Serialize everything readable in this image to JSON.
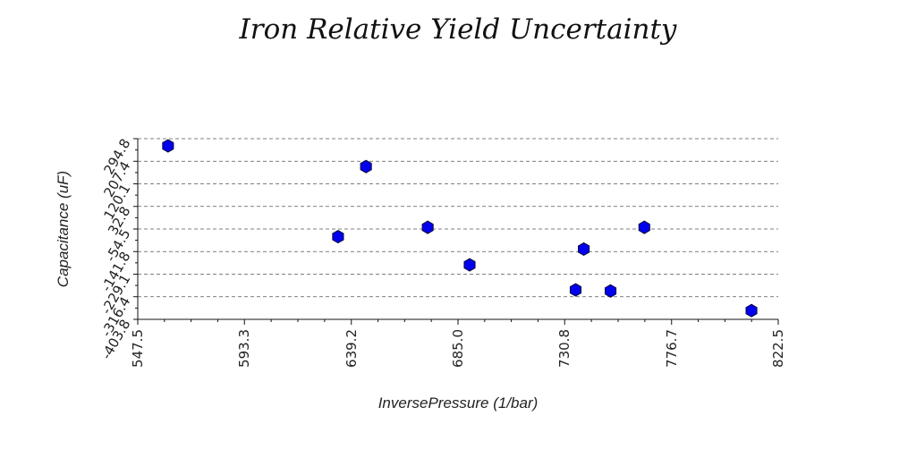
{
  "chart_data": {
    "type": "scatter",
    "title": "Iron Relative Yield Uncertainty",
    "xlabel": "InversePressure (1/bar)",
    "ylabel": "Capacitance (uF)",
    "xlim": [
      547.5,
      822.5
    ],
    "ylim": [
      -403.8,
      294.8
    ],
    "x_ticks": [
      "547.5",
      "593.3",
      "639.2",
      "685.0",
      "730.8",
      "776.7",
      "822.5"
    ],
    "y_ticks": [
      "-403.8",
      "-316.4",
      "-229.1",
      "-141.8",
      "-54.5",
      "32.8",
      "120.1",
      "207.4",
      "294.8"
    ],
    "grid": "horizontal-dashed",
    "marker": "hexagon",
    "marker_color": "#0000ee",
    "points": [
      {
        "x": 560.5,
        "y": 267.0
      },
      {
        "x": 633.5,
        "y": -84.0
      },
      {
        "x": 645.5,
        "y": 187.0
      },
      {
        "x": 672.0,
        "y": -48.0
      },
      {
        "x": 690.0,
        "y": -193.0
      },
      {
        "x": 735.5,
        "y": -290.0
      },
      {
        "x": 739.0,
        "y": -132.0
      },
      {
        "x": 750.5,
        "y": -294.0
      },
      {
        "x": 765.0,
        "y": -48.0
      },
      {
        "x": 811.0,
        "y": -370.0
      }
    ]
  }
}
